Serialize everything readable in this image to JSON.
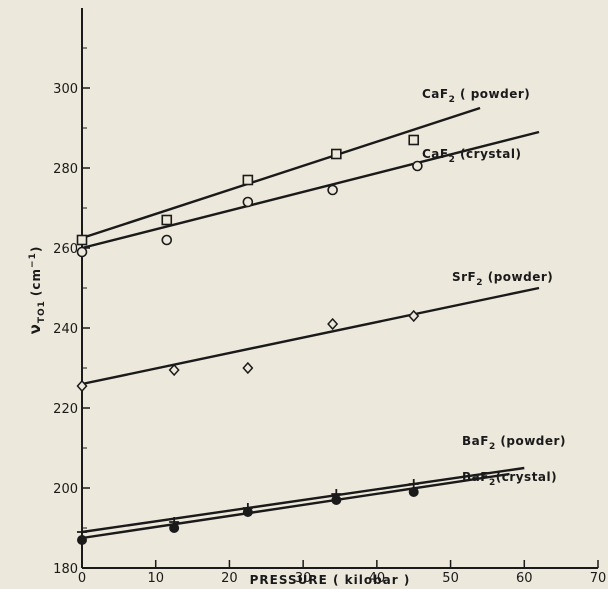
{
  "chart_data": {
    "type": "scatter",
    "title": "",
    "xlabel": "PRESSURE ( kilobar )",
    "ylabel": "ν",
    "ylabel_subscript": "TO1",
    "ylabel_unit": "(cm",
    "ylabel_unit_sup": "−1",
    "ylabel_unit_close": ")",
    "xlim": [
      0,
      70
    ],
    "ylim": [
      180,
      320
    ],
    "x_ticks": [
      0,
      10,
      20,
      30,
      40,
      50,
      60,
      70
    ],
    "y_ticks": [
      180,
      200,
      220,
      240,
      260,
      280,
      300
    ],
    "grid": false,
    "legend": "none",
    "series": [
      {
        "name": "CaF2 (powder)",
        "label_main": "CaF",
        "label_sub": "2",
        "label_rest": " ( powder)",
        "marker": "square",
        "x": [
          0,
          11.5,
          22.5,
          34.5,
          45
        ],
        "y": [
          262,
          267,
          277,
          283.5,
          287
        ],
        "fit": [
          [
            0,
            262.5
          ],
          [
            54,
            295
          ]
        ]
      },
      {
        "name": "CaF2 (crystal)",
        "label_main": "CaF",
        "label_sub": "2",
        "label_rest": " (crystal)",
        "marker": "circle",
        "x": [
          0,
          11.5,
          22.5,
          34,
          45.5
        ],
        "y": [
          259,
          262,
          271.5,
          274.5,
          280.5
        ],
        "fit": [
          [
            0,
            260
          ],
          [
            62,
            289
          ]
        ]
      },
      {
        "name": "SrF2 (powder)",
        "label_main": "SrF",
        "label_sub": "2",
        "label_rest": " (powder)",
        "marker": "diamond",
        "x": [
          0,
          12.5,
          22.5,
          34,
          45
        ],
        "y": [
          225.5,
          229.5,
          230,
          241,
          243
        ],
        "fit": [
          [
            0,
            226
          ],
          [
            62,
            250
          ]
        ]
      },
      {
        "name": "BaF2 (powder)",
        "label_main": "BaF",
        "label_sub": "2",
        "label_rest": " (powder)",
        "marker": "plus",
        "x": [
          0,
          12.5,
          22.5,
          34.5,
          45
        ],
        "y": [
          189,
          191.5,
          195,
          198.5,
          201
        ],
        "fit": [
          [
            0,
            189
          ],
          [
            60,
            205
          ]
        ]
      },
      {
        "name": "BaF2 (crystal)",
        "label_main": "BaF",
        "label_sub": "2",
        "label_rest": "(crystal)",
        "marker": "dot",
        "x": [
          0,
          12.5,
          22.5,
          34.5,
          45
        ],
        "y": [
          187,
          190,
          194,
          197,
          199
        ],
        "fit": [
          [
            0,
            187.5
          ],
          [
            58,
            203.5
          ]
        ]
      }
    ]
  }
}
